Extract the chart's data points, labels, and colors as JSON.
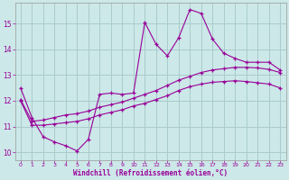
{
  "background_color": "#cce8e8",
  "grid_color": "#aacccc",
  "line_color": "#990099",
  "xlabel": "Windchill (Refroidissement éolien,°C)",
  "xlim": [
    -0.5,
    23.5
  ],
  "ylim": [
    9.7,
    15.8
  ],
  "yticks": [
    10,
    11,
    12,
    13,
    14,
    15
  ],
  "xticks": [
    0,
    1,
    2,
    3,
    4,
    5,
    6,
    7,
    8,
    9,
    10,
    11,
    12,
    13,
    14,
    15,
    16,
    17,
    18,
    19,
    20,
    21,
    22,
    23
  ],
  "line1_x": [
    0,
    1,
    2,
    3,
    4,
    5,
    6,
    7,
    8,
    9,
    10,
    11,
    12,
    13,
    14,
    15,
    16,
    17,
    18,
    19,
    20,
    21,
    22,
    23
  ],
  "line1_y": [
    12.5,
    11.35,
    10.6,
    10.4,
    10.25,
    10.05,
    10.5,
    12.25,
    12.3,
    12.25,
    12.3,
    15.05,
    14.2,
    13.75,
    14.45,
    15.55,
    15.4,
    14.4,
    13.85,
    13.65,
    13.5,
    13.5,
    13.5,
    13.2
  ],
  "line2_x": [
    0,
    1,
    2,
    3,
    4,
    5,
    6,
    7,
    8,
    9,
    10,
    11,
    12,
    13,
    14,
    15,
    16,
    17,
    18,
    19,
    20,
    21,
    22,
    23
  ],
  "line2_y": [
    12.05,
    11.2,
    11.25,
    11.35,
    11.45,
    11.5,
    11.6,
    11.75,
    11.85,
    11.95,
    12.1,
    12.25,
    12.4,
    12.6,
    12.8,
    12.95,
    13.1,
    13.2,
    13.25,
    13.3,
    13.3,
    13.28,
    13.22,
    13.1
  ],
  "line3_x": [
    0,
    1,
    2,
    3,
    4,
    5,
    6,
    7,
    8,
    9,
    10,
    11,
    12,
    13,
    14,
    15,
    16,
    17,
    18,
    19,
    20,
    21,
    22,
    23
  ],
  "line3_y": [
    12.0,
    11.05,
    11.05,
    11.1,
    11.15,
    11.2,
    11.3,
    11.45,
    11.55,
    11.65,
    11.8,
    11.9,
    12.05,
    12.2,
    12.4,
    12.55,
    12.65,
    12.72,
    12.75,
    12.78,
    12.75,
    12.7,
    12.65,
    12.5
  ]
}
